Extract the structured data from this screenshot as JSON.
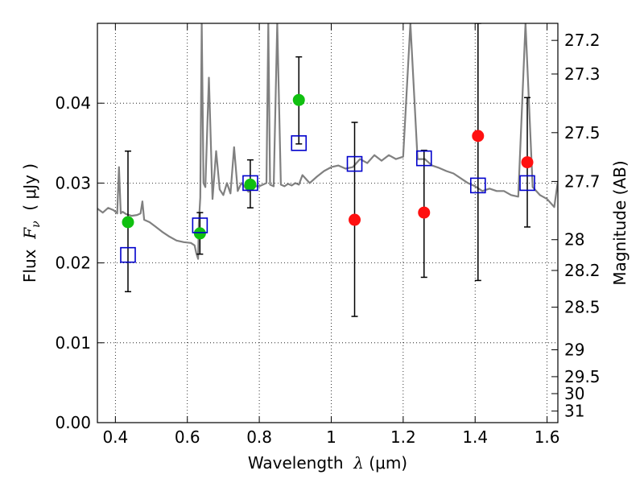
{
  "chart_data": {
    "type": "scatter",
    "xlabel": {
      "prefix": "Wavelength  ",
      "symbol": "λ",
      "unit": " (μm)"
    },
    "ylabel": {
      "prefix": "Flux  ",
      "symbol": "F",
      "subscript": "ν",
      "unit": "  ( μJy )"
    },
    "ylabel_right": "Magnitude (AB)",
    "xlim": [
      0.35,
      1.63
    ],
    "ylim": [
      0.0,
      0.05
    ],
    "x_ticks": [
      0.4,
      0.6,
      0.8,
      1.0,
      1.2,
      1.4,
      1.6
    ],
    "x_tick_labels": [
      "0.4",
      "0.6",
      "0.8",
      "1",
      "1.2",
      "1.4",
      "1.6"
    ],
    "y_ticks": [
      0.0,
      0.01,
      0.02,
      0.03,
      0.04
    ],
    "y_tick_labels": [
      "0.00",
      "0.01",
      "0.02",
      "0.03",
      "0.04"
    ],
    "right_axis_ticks": [
      {
        "label": "27.2",
        "mag": 27.2
      },
      {
        "label": "27.3",
        "mag": 27.3
      },
      {
        "label": "27.5",
        "mag": 27.5
      },
      {
        "label": "27.7",
        "mag": 27.7
      },
      {
        "label": "28",
        "mag": 28.0
      },
      {
        "label": "28.2",
        "mag": 28.2
      },
      {
        "label": "28.5",
        "mag": 28.5
      },
      {
        "label": "29",
        "mag": 29.0
      },
      {
        "label": "29.5",
        "mag": 29.5
      },
      {
        "label": "30",
        "mag": 30.0
      },
      {
        "label": "31",
        "mag": 31.0
      }
    ],
    "grid": true,
    "colors": {
      "spectrum": "#808080",
      "detection": "#10c010",
      "non_detection": "#ff1010",
      "model": "#0000cc",
      "errorbar": "#000000"
    },
    "spectrum": {
      "x": [
        0.35,
        0.365,
        0.38,
        0.395,
        0.405,
        0.41,
        0.415,
        0.42,
        0.43,
        0.445,
        0.46,
        0.47,
        0.475,
        0.48,
        0.495,
        0.51,
        0.53,
        0.55,
        0.57,
        0.59,
        0.61,
        0.62,
        0.625,
        0.63,
        0.632,
        0.636,
        0.64,
        0.645,
        0.65,
        0.66,
        0.67,
        0.68,
        0.69,
        0.7,
        0.71,
        0.72,
        0.73,
        0.74,
        0.75,
        0.76,
        0.77,
        0.78,
        0.79,
        0.8,
        0.81,
        0.82,
        0.825,
        0.83,
        0.84,
        0.85,
        0.86,
        0.87,
        0.88,
        0.89,
        0.9,
        0.91,
        0.92,
        0.94,
        0.96,
        0.98,
        1.0,
        1.02,
        1.04,
        1.06,
        1.08,
        1.1,
        1.12,
        1.14,
        1.16,
        1.18,
        1.2,
        1.22,
        1.24,
        1.26,
        1.28,
        1.3,
        1.32,
        1.34,
        1.36,
        1.38,
        1.4,
        1.42,
        1.44,
        1.46,
        1.48,
        1.5,
        1.52,
        1.54,
        1.56,
        1.58,
        1.6,
        1.62,
        1.63
      ],
      "y": [
        0.0268,
        0.0263,
        0.0269,
        0.0266,
        0.0262,
        0.032,
        0.0262,
        0.0264,
        0.0261,
        0.0259,
        0.026,
        0.0262,
        0.0277,
        0.0254,
        0.0251,
        0.0246,
        0.0239,
        0.0233,
        0.0228,
        0.0226,
        0.0225,
        0.0222,
        0.0212,
        0.0205,
        0.025,
        0.0282,
        0.05,
        0.03,
        0.0295,
        0.0432,
        0.028,
        0.034,
        0.0292,
        0.0285,
        0.03,
        0.0287,
        0.0345,
        0.029,
        0.03,
        0.0295,
        0.0289,
        0.03,
        0.0296,
        0.0296,
        0.0298,
        0.03,
        0.05,
        0.0298,
        0.0296,
        0.05,
        0.0298,
        0.0296,
        0.0299,
        0.0297,
        0.03,
        0.0298,
        0.031,
        0.03,
        0.0308,
        0.0315,
        0.032,
        0.0322,
        0.0318,
        0.032,
        0.033,
        0.0325,
        0.0335,
        0.0328,
        0.0335,
        0.033,
        0.0333,
        0.05,
        0.033,
        0.033,
        0.0322,
        0.0319,
        0.0315,
        0.0312,
        0.0306,
        0.03,
        0.0296,
        0.029,
        0.0293,
        0.029,
        0.029,
        0.0285,
        0.0283,
        0.05,
        0.0295,
        0.0285,
        0.028,
        0.027,
        0.0302
      ]
    },
    "series": [
      {
        "marker": "circle",
        "role": "detection",
        "x": [
          0.435,
          0.635,
          0.775,
          0.91
        ],
        "y": [
          0.0251,
          0.0237,
          0.0298,
          0.0404
        ]
      },
      {
        "marker": "circle",
        "role": "non_detection",
        "x": [
          1.065,
          1.258,
          1.408,
          1.545
        ],
        "y": [
          0.0254,
          0.0263,
          0.0359,
          0.0326
        ]
      },
      {
        "marker": "open-square",
        "role": "model",
        "x": [
          0.435,
          0.635,
          0.775,
          0.91,
          1.065,
          1.258,
          1.408,
          1.545
        ],
        "y": [
          0.021,
          0.0247,
          0.03,
          0.035,
          0.0324,
          0.0331,
          0.0297,
          0.03
        ]
      }
    ],
    "errorbars": [
      {
        "x": 0.435,
        "low": 0.0164,
        "high": 0.034
      },
      {
        "x": 0.635,
        "low": 0.0211,
        "high": 0.0263
      },
      {
        "x": 0.775,
        "low": 0.0269,
        "high": 0.0329
      },
      {
        "x": 0.91,
        "low": 0.0349,
        "high": 0.0458
      },
      {
        "x": 1.065,
        "low": 0.0133,
        "high": 0.0376
      },
      {
        "x": 1.258,
        "low": 0.0182,
        "high": 0.0341
      },
      {
        "x": 1.408,
        "low": 0.0178,
        "high": 0.05
      },
      {
        "x": 1.545,
        "low": 0.0245,
        "high": 0.0407
      }
    ]
  }
}
